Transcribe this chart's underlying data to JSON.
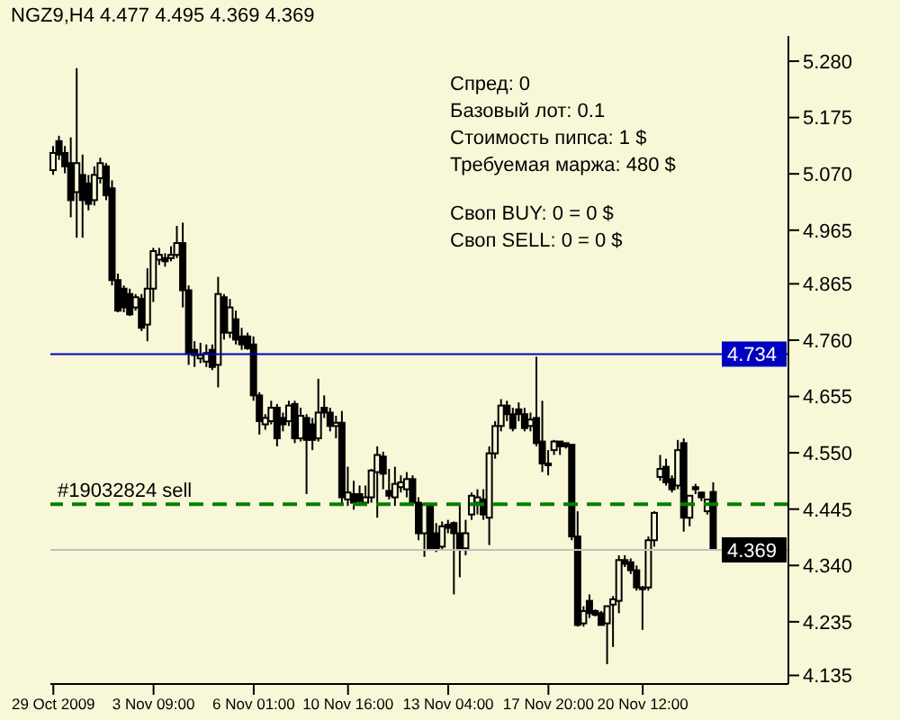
{
  "chart_data": {
    "type": "candlestick",
    "title": "NGZ9,H4  4.477 4.495 4.369 4.369",
    "color": "#000000",
    "annotations": [
      "Спред: 0",
      "Базовый лот: 0.1",
      "Стоимость пипса: 1 $",
      "Требуемая маржа: 480 $",
      "Своп BUY: 0 = 0 $",
      "Своп SELL: 0 = 0 $"
    ],
    "categories": [
      "29 Oct 2009",
      null,
      null,
      null,
      null,
      null,
      null,
      null,
      null,
      null,
      null,
      null,
      null,
      null,
      null,
      null,
      null,
      "3 Nov 09:00",
      null,
      null,
      null,
      null,
      null,
      null,
      null,
      null,
      null,
      null,
      null,
      null,
      null,
      null,
      null,
      null,
      "6 Nov 01:00",
      null,
      null,
      null,
      null,
      null,
      null,
      null,
      null,
      null,
      null,
      null,
      null,
      null,
      null,
      null,
      "10 Nov 16:00",
      null,
      null,
      null,
      null,
      null,
      null,
      null,
      null,
      null,
      null,
      null,
      null,
      null,
      null,
      null,
      null,
      "13 Nov 04:00",
      null,
      null,
      null,
      null,
      null,
      null,
      null,
      null,
      null,
      null,
      null,
      null,
      null,
      null,
      null,
      null,
      "17 Nov 20:00",
      null,
      null,
      null,
      null,
      null,
      null,
      null,
      null,
      null,
      null,
      null,
      null,
      null,
      null,
      null,
      "20 Nov 12:00",
      null,
      null,
      null,
      null,
      null,
      null,
      null,
      null,
      null,
      null,
      null,
      null
    ],
    "ohlc": [
      [
        5.077,
        5.122,
        5.068,
        5.109
      ],
      [
        5.131,
        5.141,
        5.096,
        5.106
      ],
      [
        5.109,
        5.122,
        5.071,
        5.084
      ],
      [
        5.09,
        5.138,
        4.989,
        5.021
      ],
      [
        5.036,
        5.267,
        4.951,
        5.09
      ],
      [
        5.068,
        5.106,
        4.951,
        5.021
      ],
      [
        5.052,
        5.068,
        5.002,
        5.014
      ],
      [
        5.021,
        5.084,
        5.011,
        5.068
      ],
      [
        5.062,
        5.1,
        5.052,
        5.09
      ],
      [
        5.084,
        5.09,
        5.021,
        5.03
      ],
      [
        5.043,
        5.058,
        4.862,
        4.872
      ],
      [
        4.872,
        4.884,
        4.812,
        4.815
      ],
      [
        4.856,
        4.862,
        4.812,
        4.821
      ],
      [
        4.846,
        4.856,
        4.805,
        4.808
      ],
      [
        4.821,
        4.846,
        4.815,
        4.84
      ],
      [
        4.837,
        4.846,
        4.777,
        4.783
      ],
      [
        4.789,
        4.894,
        4.758,
        4.856
      ],
      [
        4.856,
        4.932,
        4.831,
        4.926
      ],
      [
        4.91,
        4.932,
        4.9,
        4.919
      ],
      [
        4.913,
        4.922,
        4.897,
        4.907
      ],
      [
        4.913,
        4.935,
        4.907,
        4.919
      ],
      [
        4.919,
        4.973,
        4.913,
        4.941
      ],
      [
        4.941,
        4.979,
        4.821,
        4.853
      ],
      [
        4.853,
        4.862,
        4.714,
        4.736
      ],
      [
        4.742,
        4.758,
        4.71,
        4.732
      ],
      [
        4.726,
        4.755,
        4.717,
        4.732
      ],
      [
        4.72,
        4.752,
        4.71,
        4.736
      ],
      [
        4.742,
        4.752,
        4.704,
        4.71
      ],
      [
        4.714,
        4.878,
        4.672,
        4.846
      ],
      [
        4.84,
        4.846,
        4.761,
        4.774
      ],
      [
        4.774,
        4.837,
        4.764,
        4.821
      ],
      [
        4.799,
        4.815,
        4.752,
        4.761
      ],
      [
        4.767,
        4.783,
        4.742,
        4.752
      ],
      [
        4.767,
        4.774,
        4.742,
        4.745
      ],
      [
        4.752,
        4.767,
        4.647,
        4.657
      ],
      [
        4.657,
        4.663,
        4.584,
        4.609
      ],
      [
        4.603,
        4.622,
        4.593,
        4.615
      ],
      [
        4.609,
        4.647,
        4.603,
        4.634
      ],
      [
        4.634,
        4.641,
        4.562,
        4.577
      ],
      [
        4.615,
        4.625,
        4.59,
        4.603
      ],
      [
        4.609,
        4.647,
        4.6,
        4.638
      ],
      [
        4.641,
        4.647,
        4.568,
        4.577
      ],
      [
        4.577,
        4.634,
        4.571,
        4.619
      ],
      [
        4.615,
        4.622,
        4.473,
        4.574
      ],
      [
        4.603,
        4.615,
        4.555,
        4.574
      ],
      [
        4.577,
        4.688,
        4.571,
        4.625
      ],
      [
        4.634,
        4.657,
        4.615,
        4.625
      ],
      [
        4.625,
        4.634,
        4.59,
        4.6
      ],
      [
        4.6,
        4.619,
        4.577,
        4.606
      ],
      [
        4.606,
        4.628,
        4.451,
        4.467
      ],
      [
        4.463,
        4.524,
        4.451,
        4.476
      ],
      [
        4.473,
        4.498,
        4.444,
        4.457
      ],
      [
        4.473,
        4.489,
        4.451,
        4.46
      ],
      [
        4.457,
        4.489,
        4.451,
        4.467
      ],
      [
        4.467,
        4.52,
        4.457,
        4.517
      ],
      [
        4.514,
        4.562,
        4.429,
        4.546
      ],
      [
        4.543,
        4.552,
        4.482,
        4.511
      ],
      [
        4.479,
        4.52,
        4.463,
        4.47
      ],
      [
        4.467,
        4.524,
        4.451,
        4.492
      ],
      [
        4.486,
        4.508,
        4.476,
        4.495
      ],
      [
        4.482,
        4.514,
        4.467,
        4.501
      ],
      [
        4.501,
        4.508,
        4.451,
        4.457
      ],
      [
        4.457,
        4.467,
        4.387,
        4.4
      ],
      [
        4.4,
        4.457,
        4.356,
        4.454
      ],
      [
        4.451,
        4.454,
        4.369,
        4.372
      ],
      [
        4.4,
        4.419,
        4.365,
        4.372
      ],
      [
        4.375,
        4.422,
        4.369,
        4.413
      ],
      [
        4.416,
        4.425,
        4.4,
        4.41
      ],
      [
        4.419,
        4.422,
        4.286,
        4.4
      ],
      [
        4.4,
        4.451,
        4.318,
        4.372
      ],
      [
        4.372,
        4.425,
        4.359,
        4.4
      ],
      [
        4.435,
        4.476,
        4.425,
        4.47
      ],
      [
        4.457,
        4.482,
        4.435,
        4.467
      ],
      [
        4.463,
        4.482,
        4.425,
        4.435
      ],
      [
        4.429,
        4.562,
        4.378,
        4.549
      ],
      [
        4.549,
        4.609,
        4.539,
        4.6
      ],
      [
        4.6,
        4.65,
        4.59,
        4.638
      ],
      [
        4.638,
        4.647,
        4.609,
        4.622
      ],
      [
        4.622,
        4.634,
        4.59,
        4.596
      ],
      [
        4.631,
        4.644,
        4.609,
        4.622
      ],
      [
        4.622,
        4.634,
        4.59,
        4.596
      ],
      [
        4.6,
        4.625,
        4.59,
        4.612
      ],
      [
        4.615,
        4.729,
        4.562,
        4.568
      ],
      [
        4.571,
        4.647,
        4.514,
        4.53
      ],
      [
        4.53,
        4.555,
        4.508,
        4.527
      ],
      [
        4.555,
        4.574,
        4.546,
        4.571
      ],
      [
        4.571,
        4.571,
        4.546,
        4.562
      ],
      [
        4.568,
        4.568,
        4.558,
        4.562
      ],
      [
        4.565,
        4.565,
        4.387,
        4.394
      ],
      [
        4.394,
        4.441,
        4.226,
        4.229
      ],
      [
        4.232,
        4.264,
        4.226,
        4.255
      ],
      [
        4.274,
        4.286,
        4.242,
        4.251
      ],
      [
        4.255,
        4.258,
        4.245,
        4.248
      ],
      [
        4.251,
        4.255,
        4.229,
        4.229
      ],
      [
        4.232,
        4.264,
        4.156,
        4.264
      ],
      [
        4.267,
        4.283,
        4.188,
        4.277
      ],
      [
        4.274,
        4.359,
        4.251,
        4.35
      ],
      [
        4.35,
        4.359,
        4.337,
        4.343
      ],
      [
        4.346,
        4.353,
        4.324,
        4.331
      ],
      [
        4.331,
        4.34,
        4.293,
        4.299
      ],
      [
        4.299,
        4.302,
        4.22,
        4.296
      ],
      [
        4.299,
        4.394,
        4.293,
        4.387
      ],
      [
        4.387,
        4.441,
        4.375,
        4.438
      ],
      [
        4.505,
        4.546,
        4.498,
        4.52
      ],
      [
        4.524,
        4.539,
        4.489,
        4.495
      ],
      [
        4.501,
        4.508,
        4.476,
        4.482
      ],
      [
        4.489,
        4.574,
        4.482,
        4.555
      ],
      [
        4.568,
        4.577,
        4.403,
        4.429
      ],
      [
        4.429,
        4.47,
        4.413,
        4.47
      ],
      [
        4.486,
        4.492,
        4.473,
        4.482
      ],
      [
        4.476,
        4.476,
        4.46,
        4.467
      ],
      [
        4.441,
        4.463,
        4.435,
        4.463
      ],
      [
        4.477,
        4.495,
        4.369,
        4.369
      ]
    ],
    "ylim": [
      4.119,
      5.327
    ],
    "yticks": [
      {
        "value": 5.28,
        "label": "5.280"
      },
      5.175,
      {
        "value": 5.07,
        "label": "5.070"
      },
      4.965,
      4.865,
      {
        "value": 4.76,
        "label": "4.760"
      },
      4.655,
      {
        "value": 4.55,
        "label": "4.550"
      },
      4.445,
      {
        "value": 4.34,
        "label": "4.340"
      },
      4.235,
      4.135
    ],
    "ref_lines": [
      {
        "axis": "y",
        "value": 4.734,
        "label": "4.734",
        "color": "#0000c0",
        "line_style": "solid"
      },
      {
        "axis": "y",
        "value": 4.454,
        "label": "#19032824 sell",
        "color": "#008000",
        "line_style": "dashed"
      },
      {
        "axis": "y",
        "value": 4.369,
        "label": "4.369",
        "color": "#c0c0c0",
        "line_style": "solid"
      }
    ],
    "grid": false
  }
}
